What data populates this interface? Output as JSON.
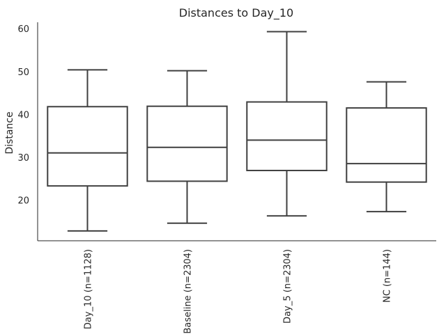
{
  "chart_data": {
    "type": "box",
    "title": "Distances to Day_10",
    "xlabel": "",
    "ylabel": "Distance",
    "categories": [
      "Day_10 (n=1128)",
      "Baseline (n=2304)",
      "Day_5 (n=2304)",
      "NC (n=144)"
    ],
    "boxes": [
      {
        "whisker_low": 12.8,
        "q1": 23.3,
        "median": 31.0,
        "q3": 41.8,
        "whisker_high": 50.4
      },
      {
        "whisker_low": 14.6,
        "q1": 24.4,
        "median": 32.3,
        "q3": 41.9,
        "whisker_high": 50.2
      },
      {
        "whisker_low": 16.3,
        "q1": 26.9,
        "median": 34.0,
        "q3": 42.9,
        "whisker_high": 59.3
      },
      {
        "whisker_low": 17.3,
        "q1": 24.2,
        "median": 28.5,
        "q3": 41.5,
        "whisker_high": 47.6
      }
    ],
    "yticks": [
      20,
      30,
      40,
      50,
      60
    ],
    "ylim": [
      10.5,
      61.5
    ],
    "grid": false,
    "colors": {
      "box_edge": "#3f3f3f",
      "box_fill": "#ffffff",
      "axis": "#262626"
    }
  }
}
